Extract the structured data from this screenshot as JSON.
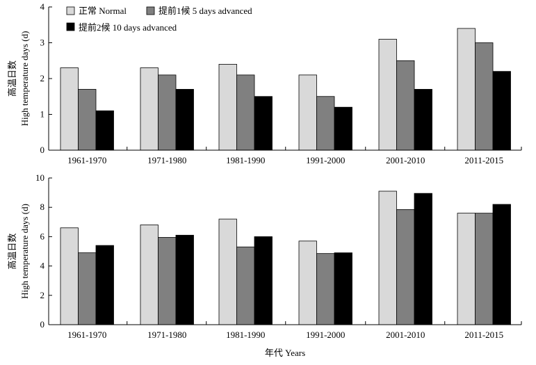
{
  "colors": {
    "normal": "#d9d9d9",
    "advanced5": "#808080",
    "advanced10": "#000000",
    "axis": "#000000"
  },
  "legend": {
    "normal": "正常 Normal",
    "advanced5": "提前1候 5 days advanced",
    "advanced10": "提前2候 10 days advanced"
  },
  "xlabel": "年代 Years",
  "chart_data": [
    {
      "type": "bar",
      "categories": [
        "1961-1970",
        "1971-1980",
        "1981-1990",
        "1991-2000",
        "2001-2010",
        "2011-2015"
      ],
      "ylabel_cn": "高温日数",
      "ylabel_en": "High temperature days (d)",
      "ylim": [
        0,
        4
      ],
      "yticks": [
        0,
        1,
        2,
        3,
        4
      ],
      "series": [
        {
          "name": "正常 Normal",
          "values": [
            2.3,
            2.3,
            2.4,
            2.1,
            3.1,
            3.4
          ]
        },
        {
          "name": "提前1候 5 days advanced",
          "values": [
            1.7,
            2.1,
            2.1,
            1.5,
            2.5,
            3.0
          ]
        },
        {
          "name": "提前2候 10 days advanced",
          "values": [
            1.1,
            1.7,
            1.5,
            1.2,
            1.7,
            2.2
          ]
        }
      ],
      "legend_position": "top-left"
    },
    {
      "type": "bar",
      "categories": [
        "1961-1970",
        "1971-1980",
        "1981-1990",
        "1991-2000",
        "2001-2010",
        "2011-2015"
      ],
      "ylabel_cn": "高温日数",
      "ylabel_en": "High temperature days (d)",
      "ylim": [
        0,
        10
      ],
      "yticks": [
        0,
        2,
        4,
        6,
        8,
        10
      ],
      "series": [
        {
          "name": "正常 Normal",
          "values": [
            6.6,
            6.8,
            7.2,
            5.7,
            9.1,
            7.6
          ]
        },
        {
          "name": "提前1候 5 days advanced",
          "values": [
            4.9,
            5.95,
            5.3,
            4.85,
            7.85,
            7.6
          ]
        },
        {
          "name": "提前2候 10 days advanced",
          "values": [
            5.4,
            6.1,
            6.0,
            4.9,
            8.95,
            8.2
          ]
        }
      ]
    }
  ]
}
